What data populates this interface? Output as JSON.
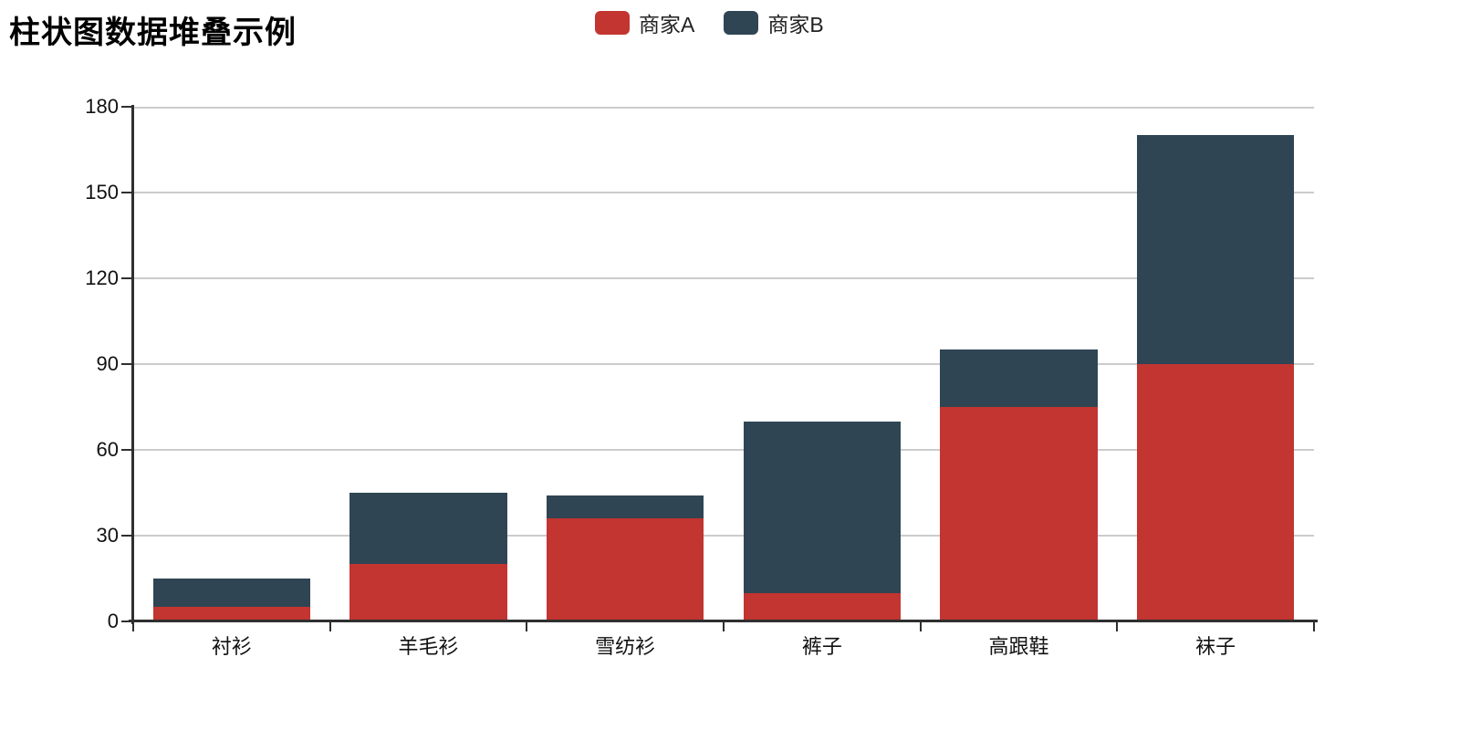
{
  "title": "柱状图数据堆叠示例",
  "legend": {
    "items": [
      {
        "label": "商家A",
        "color": "#c23531"
      },
      {
        "label": "商家B",
        "color": "#2f4554"
      }
    ]
  },
  "chart_data": {
    "type": "bar",
    "stacked": true,
    "title": "柱状图数据堆叠示例",
    "categories": [
      "衬衫",
      "羊毛衫",
      "雪纺衫",
      "裤子",
      "高跟鞋",
      "袜子"
    ],
    "series": [
      {
        "name": "商家A",
        "color": "#c23531",
        "values": [
          5,
          20,
          36,
          10,
          75,
          90
        ]
      },
      {
        "name": "商家B",
        "color": "#2f4554",
        "values": [
          10,
          25,
          8,
          60,
          20,
          80
        ]
      }
    ],
    "stack_totals": [
      15,
      45,
      44,
      70,
      95,
      170
    ],
    "xlabel": "",
    "ylabel": "",
    "ylim": [
      0,
      180
    ],
    "y_ticks": [
      0,
      30,
      60,
      90,
      120,
      150,
      180
    ],
    "grid": true,
    "legend_position": "top-center",
    "bar_width_fraction": 0.8
  },
  "colors": {
    "background": "#ffffff",
    "axis": "#2f2f2f",
    "gridline": "#cccccc",
    "axis_text": "#111111",
    "title_text": "#000000"
  }
}
